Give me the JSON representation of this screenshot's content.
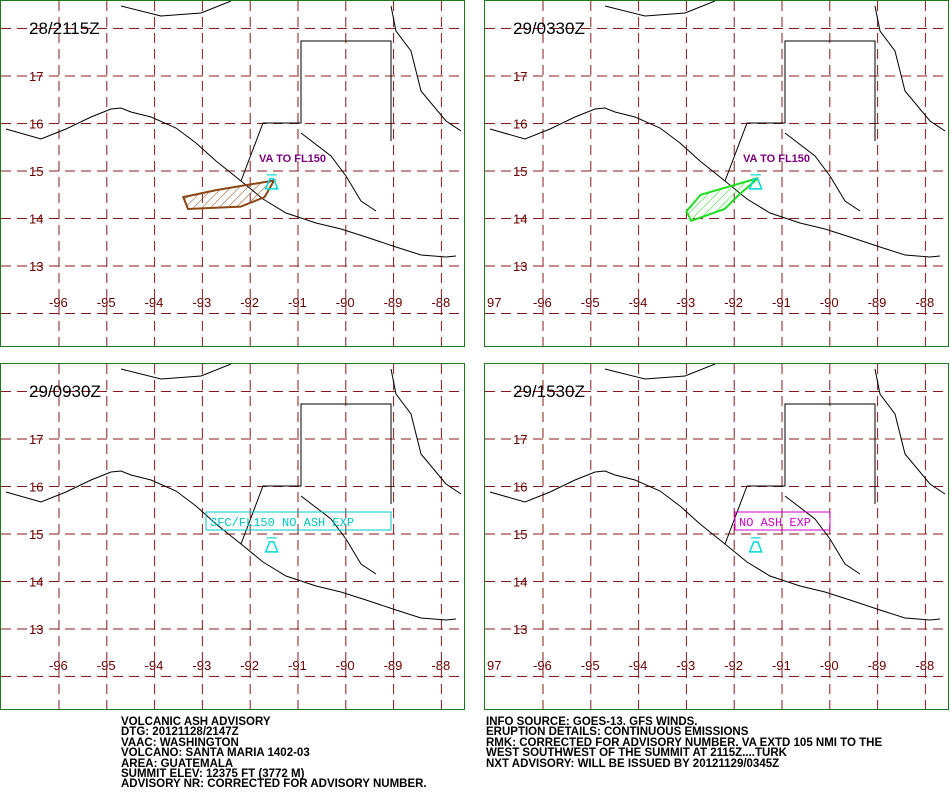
{
  "colors": {
    "grid": "#8b1a1a",
    "coast": "#000000",
    "frame": "#1f7a1f",
    "ash_obs": "#8b4513",
    "ash_fcst": "#22dd22",
    "volcano": "#00d8d8",
    "label_va": "#7a007a",
    "label_sfc": "#00c8c8",
    "label_noash": "#cc00cc"
  },
  "axes": {
    "lat_labels": [
      "17",
      "16",
      "15",
      "14",
      "13"
    ],
    "lon_labels": [
      "-96",
      "-95",
      "-94",
      "-93",
      "-92",
      "-91",
      "-90",
      "-89",
      "-88"
    ],
    "lon_extra_label": "97"
  },
  "panels": [
    {
      "dtg": "28/2115Z",
      "label": "VA TO FL150",
      "label_style": "va",
      "ash": "obs"
    },
    {
      "dtg": "29/0330Z",
      "label": "VA TO FL150",
      "label_style": "va",
      "ash": "fcst"
    },
    {
      "dtg": "29/0930Z",
      "label": "SFC/FL150 NO ASH EXP",
      "label_style": "sfc",
      "ash": "none"
    },
    {
      "dtg": "29/1530Z",
      "label": "NO ASH EXP",
      "label_style": "noash",
      "ash": "none"
    }
  ],
  "volcano": {
    "name": "SANTA MARIA",
    "lat": 14.75,
    "lon": -91.55
  },
  "ash_cloud": {
    "obs": [
      [
        -93.4,
        14.45
      ],
      [
        -92.7,
        14.6
      ],
      [
        -91.5,
        14.8
      ],
      [
        -91.7,
        14.45
      ],
      [
        -92.2,
        14.25
      ],
      [
        -93.3,
        14.2
      ]
    ],
    "fcst": [
      [
        -93.0,
        14.15
      ],
      [
        -92.7,
        14.5
      ],
      [
        -91.5,
        14.85
      ],
      [
        -91.9,
        14.5
      ],
      [
        -92.2,
        14.2
      ],
      [
        -92.9,
        13.95
      ]
    ]
  },
  "advisory_left": [
    "VOLCANIC ASH ADVISORY",
    "DTG: 20121128/2147Z",
    "VAAC: WASHINGTON",
    "VOLCANO: SANTA MARIA 1402-03",
    "AREA: GUATEMALA",
    "SUMMIT ELEV: 12375 FT (3772 M)",
    "ADVISORY NR: CORRECTED FOR ADVISORY NUMBER."
  ],
  "advisory_right": [
    "INFO SOURCE: GOES-13. GFS WINDS.",
    "ERUPTION DETAILS: CONTINUOUS EMISSIONS",
    "RMK: CORRECTED FOR ADVISORY NUMBER. VA EXTD 105 NMI TO THE",
    "WEST SOUTHWEST OF THE SUMMIT AT 2115Z....TURK",
    "NXT ADVISORY: WILL BE ISSUED BY 20121129/0345Z"
  ]
}
